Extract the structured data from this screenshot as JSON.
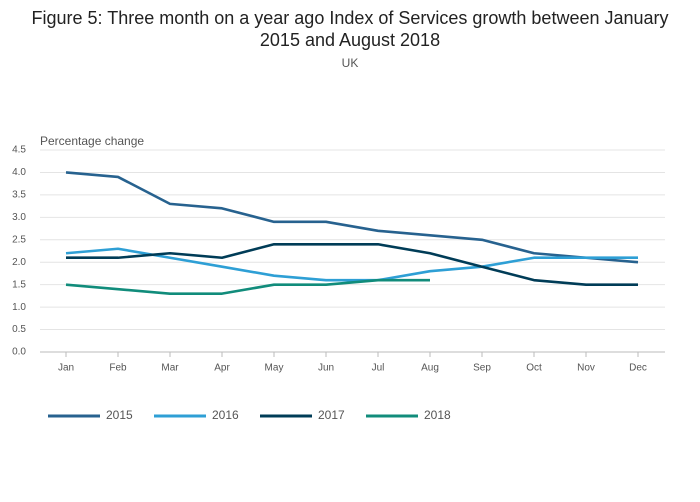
{
  "chart_data": {
    "type": "line",
    "title": "Figure 5: Three month on a year ago Index of Services growth between January 2015 and August 2018",
    "subtitle": "UK",
    "y_label": "Percentage change",
    "categories": [
      "Jan",
      "Feb",
      "Mar",
      "Apr",
      "May",
      "Jun",
      "Jul",
      "Aug",
      "Sep",
      "Oct",
      "Nov",
      "Dec"
    ],
    "series": [
      {
        "name": "2015",
        "color": "#27628f",
        "values": [
          4.0,
          3.9,
          3.3,
          3.2,
          2.9,
          2.9,
          2.7,
          2.6,
          2.5,
          2.2,
          2.1,
          2.0
        ]
      },
      {
        "name": "2016",
        "color": "#2e9fd5",
        "values": [
          2.2,
          2.3,
          2.1,
          1.9,
          1.7,
          1.6,
          1.6,
          1.8,
          1.9,
          2.1,
          2.1,
          2.1
        ]
      },
      {
        "name": "2017",
        "color": "#003c57",
        "values": [
          2.1,
          2.1,
          2.2,
          2.1,
          2.4,
          2.4,
          2.4,
          2.2,
          1.9,
          1.6,
          1.5,
          1.5
        ]
      },
      {
        "name": "2018",
        "color": "#118c7b",
        "values": [
          1.5,
          1.4,
          1.3,
          1.3,
          1.5,
          1.5,
          1.6,
          1.6,
          null,
          null,
          null,
          null
        ]
      }
    ],
    "ylim": [
      0,
      4.5
    ],
    "yticks": [
      {
        "value": 0,
        "label": "0.0"
      },
      0.5,
      {
        "value": 1,
        "label": "1.0"
      },
      1.5,
      {
        "value": 2,
        "label": "2.0"
      },
      2.5,
      {
        "value": 3,
        "label": "3.0"
      },
      3.5,
      {
        "value": 4,
        "label": "4.0"
      },
      4.5
    ],
    "grid": true,
    "legend": "bottom"
  }
}
